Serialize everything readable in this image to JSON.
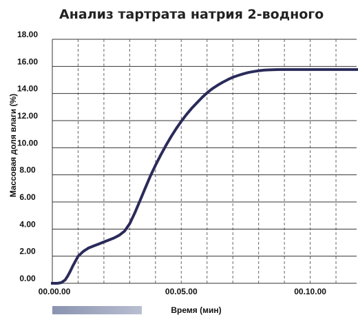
{
  "chart_data": {
    "type": "line",
    "title": "Анализ тартрата натрия 2-водного",
    "xlabel": "Время (мин)",
    "ylabel": "Массовая доля влаги (%)",
    "xlim": [
      0,
      11.8
    ],
    "ylim": [
      0,
      18
    ],
    "x_ticks": [
      {
        "value": 0,
        "label": "00.00.00"
      },
      {
        "value": 5,
        "label": "00.05.00"
      },
      {
        "value": 10,
        "label": "00.10.00"
      }
    ],
    "y_ticks": [
      {
        "value": 0,
        "label": "0.00"
      },
      {
        "value": 2,
        "label": "2.00"
      },
      {
        "value": 4,
        "label": "4.00"
      },
      {
        "value": 6,
        "label": "6.00"
      },
      {
        "value": 8,
        "label": "8.00"
      },
      {
        "value": 10,
        "label": "10.00"
      },
      {
        "value": 12,
        "label": "12.00"
      },
      {
        "value": 14,
        "label": "14.00"
      },
      {
        "value": 16,
        "label": "16.00"
      },
      {
        "value": 18,
        "label": "18.00"
      }
    ],
    "grid": {
      "horizontal": "solid",
      "vertical": "dashed",
      "vertical_interval": 1
    },
    "line_color": "#2a2a5a",
    "series": [
      {
        "x": [
          0,
          0.2,
          0.35,
          0.5,
          0.6,
          0.7,
          0.8,
          0.9,
          1.0,
          1.2,
          1.4,
          1.6,
          1.8,
          2.0,
          2.2,
          2.4,
          2.6,
          2.8,
          3.0,
          3.2,
          3.4,
          3.6,
          3.8,
          4.0,
          4.2,
          4.4,
          4.6,
          4.8,
          5.0,
          5.2,
          5.4,
          5.6,
          5.8,
          6.0,
          6.2,
          6.4,
          6.6,
          6.8,
          7.0,
          7.2,
          7.4,
          7.6,
          7.8,
          8.0,
          8.2,
          8.4,
          8.6,
          8.8,
          9.0,
          9.2,
          9.5,
          10.0,
          10.5,
          11.0,
          11.5,
          11.8
        ],
        "y": [
          0.0,
          0.0,
          0.05,
          0.25,
          0.55,
          0.9,
          1.3,
          1.65,
          2.0,
          2.35,
          2.6,
          2.75,
          2.9,
          3.05,
          3.2,
          3.35,
          3.55,
          3.85,
          4.4,
          5.2,
          6.1,
          7.0,
          7.9,
          8.7,
          9.45,
          10.15,
          10.8,
          11.4,
          11.95,
          12.45,
          12.9,
          13.3,
          13.7,
          14.05,
          14.35,
          14.6,
          14.82,
          15.02,
          15.2,
          15.33,
          15.45,
          15.55,
          15.62,
          15.68,
          15.72,
          15.74,
          15.76,
          15.77,
          15.77,
          15.77,
          15.77,
          15.77,
          15.77,
          15.77,
          15.77,
          15.77
        ]
      }
    ]
  }
}
